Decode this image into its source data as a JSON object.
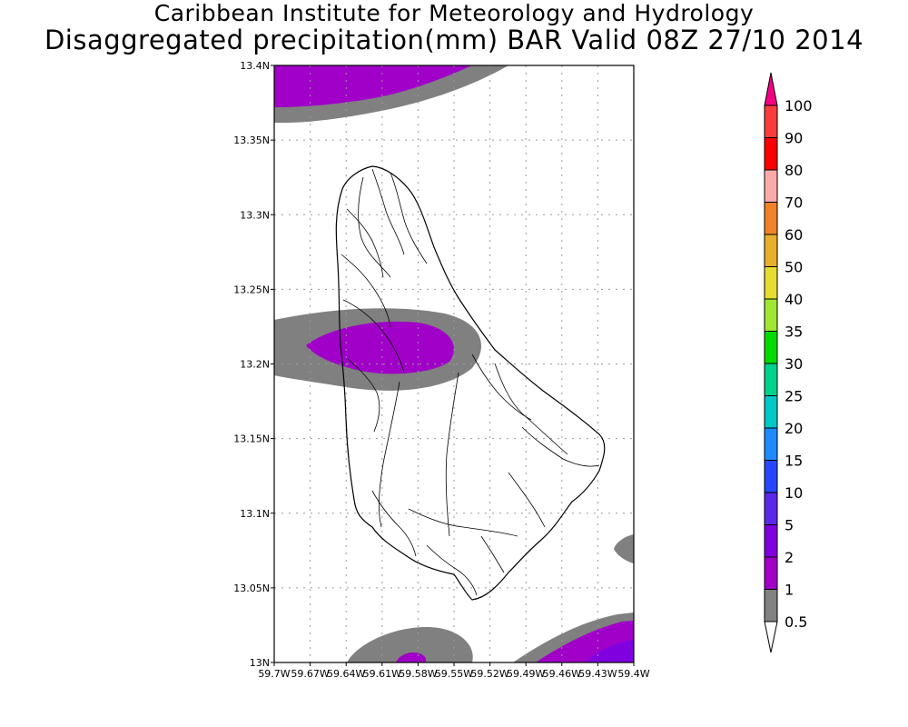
{
  "header": {
    "title": "Caribbean Institute for Meteorology and Hydrology",
    "subtitle": "Disaggregated precipitation(mm) BAR Valid 08Z 27/10 2014"
  },
  "map": {
    "lon_range": [
      -59.7,
      -59.4
    ],
    "lat_range": [
      13.0,
      13.4
    ],
    "grid": true,
    "lat_ticks": [
      {
        "value": 13.0,
        "label": "13N"
      },
      {
        "value": 13.05,
        "label": "13.05N"
      },
      {
        "value": 13.1,
        "label": "13.1N"
      },
      {
        "value": 13.15,
        "label": "13.15N"
      },
      {
        "value": 13.2,
        "label": "13.2N"
      },
      {
        "value": 13.25,
        "label": "13.25N"
      },
      {
        "value": 13.3,
        "label": "13.3N"
      },
      {
        "value": 13.35,
        "label": "13.35N"
      },
      {
        "value": 13.4,
        "label": "13.4N"
      }
    ],
    "lon_ticks": [
      {
        "value": -59.7,
        "label": "59.7W"
      },
      {
        "value": -59.67,
        "label": "59.67W"
      },
      {
        "value": -59.64,
        "label": "59.64W"
      },
      {
        "value": -59.61,
        "label": "59.61W"
      },
      {
        "value": -59.58,
        "label": "59.58W"
      },
      {
        "value": -59.55,
        "label": "59.55W"
      },
      {
        "value": -59.52,
        "label": "59.52W"
      },
      {
        "value": -59.49,
        "label": "59.49W"
      },
      {
        "value": -59.46,
        "label": "59.46W"
      },
      {
        "value": -59.43,
        "label": "59.43W"
      },
      {
        "value": -59.4,
        "label": "59.4W"
      }
    ]
  },
  "legend": {
    "levels": [
      {
        "label": "0.5",
        "color": "#ffffff"
      },
      {
        "label": "1",
        "color": "#808080"
      },
      {
        "label": "2",
        "color": "#a000c8"
      },
      {
        "label": "5",
        "color": "#8000e0"
      },
      {
        "label": "10",
        "color": "#5a28e8"
      },
      {
        "label": "15",
        "color": "#2846ff"
      },
      {
        "label": "20",
        "color": "#1e8cff"
      },
      {
        "label": "25",
        "color": "#00c8c8"
      },
      {
        "label": "30",
        "color": "#00d28c"
      },
      {
        "label": "35",
        "color": "#00dc00"
      },
      {
        "label": "40",
        "color": "#a0e632"
      },
      {
        "label": "50",
        "color": "#e6dc32"
      },
      {
        "label": "60",
        "color": "#e6af2d"
      },
      {
        "label": "70",
        "color": "#f08228"
      },
      {
        "label": "80",
        "color": "#faaaaa"
      },
      {
        "label": "90",
        "color": "#fa0000"
      },
      {
        "label": "100",
        "color": "#fa3c3c"
      }
    ],
    "overflow_color": "#f00082"
  },
  "colors": {
    "gray": "#808080",
    "purple": "#a000c8",
    "violet": "#8000e0"
  }
}
